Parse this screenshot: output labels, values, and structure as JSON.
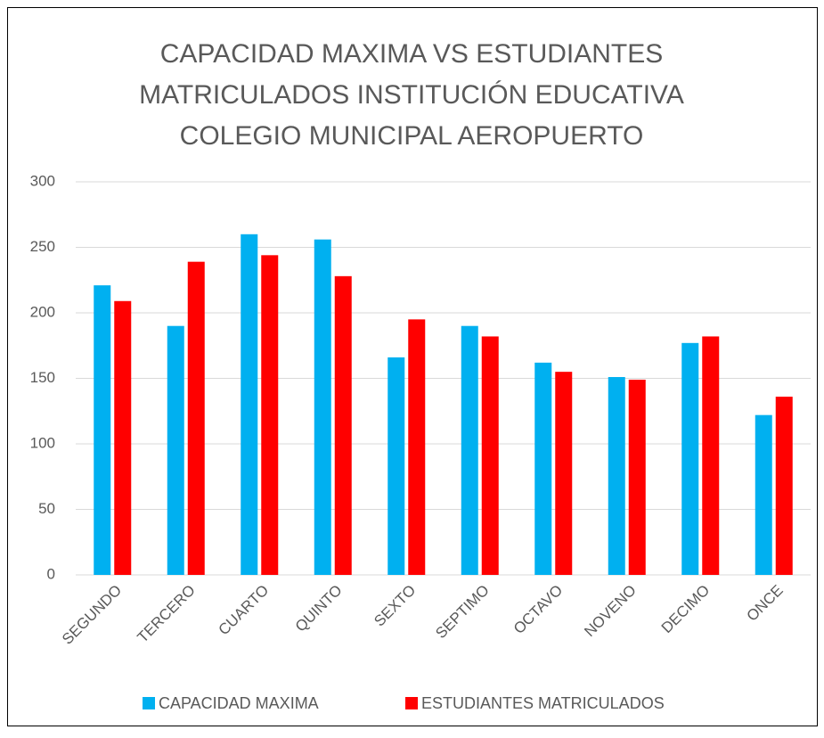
{
  "chart_data": {
    "type": "bar",
    "title": [
      "CAPACIDAD MAXIMA VS ESTUDIANTES",
      "MATRICULADOS INSTITUCIÓN EDUCATIVA",
      "COLEGIO MUNICIPAL AEROPUERTO"
    ],
    "categories": [
      "SEGUNDO",
      "TERCERO",
      "CUARTO",
      "QUINTO",
      "SEXTO",
      "SEPTIMO",
      "OCTAVO",
      "NOVENO",
      "DECIMO",
      "ONCE"
    ],
    "series": [
      {
        "name": "CAPACIDAD MAXIMA",
        "color": "#00b0f0",
        "values": [
          221,
          190,
          260,
          256,
          166,
          190,
          162,
          151,
          177,
          122
        ]
      },
      {
        "name": "ESTUDIANTES MATRICULADOS",
        "color": "#ff0000",
        "values": [
          209,
          239,
          244,
          228,
          195,
          182,
          155,
          149,
          182,
          136
        ]
      }
    ],
    "ylim": [
      0,
      300
    ],
    "yticks": [
      0,
      50,
      100,
      150,
      200,
      250,
      300
    ],
    "grid": true,
    "legend": "bottom"
  }
}
